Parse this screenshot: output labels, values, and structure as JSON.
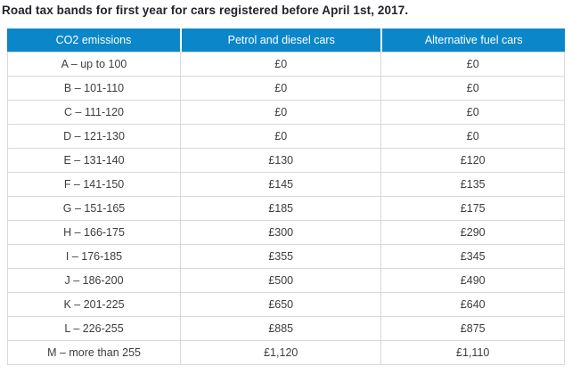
{
  "title": "Road tax bands for first year for cars registered before April 1st, 2017.",
  "table": {
    "columns": [
      "CO2 emissions",
      "Petrol and diesel cars",
      "Alternative fuel cars"
    ],
    "rows": [
      [
        "A – up to 100",
        "£0",
        "£0"
      ],
      [
        "B – 101-110",
        "£0",
        "£0"
      ],
      [
        "C – 111-120",
        "£0",
        "£0"
      ],
      [
        "D – 121-130",
        "£0",
        "£0"
      ],
      [
        "E – 131-140",
        "£130",
        "£120"
      ],
      [
        "F – 141-150",
        "£145",
        "£135"
      ],
      [
        "G – 151-165",
        "£185",
        "£175"
      ],
      [
        "H – 166-175",
        "£300",
        "£290"
      ],
      [
        "I – 176-185",
        "£355",
        "£345"
      ],
      [
        "J – 186-200",
        "£500",
        "£490"
      ],
      [
        "K – 201-225",
        "£650",
        "£640"
      ],
      [
        "L – 226-255",
        "£885",
        "£875"
      ],
      [
        "M – more than 255",
        "£1,120",
        "£1,110"
      ]
    ]
  },
  "colors": {
    "header_bg": "#0b87c9",
    "header_text": "#ffffff",
    "border": "#d9d9d9",
    "title_text": "#23232b",
    "body_text": "#3d3d3d"
  }
}
